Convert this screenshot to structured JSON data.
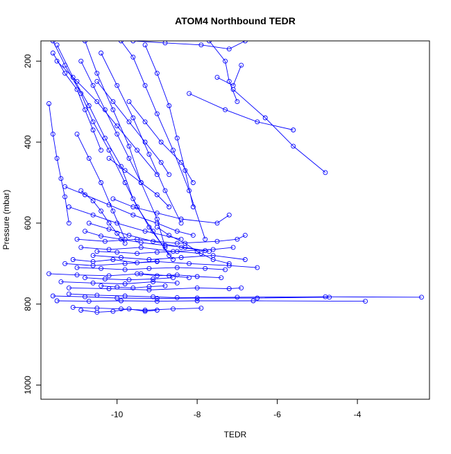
{
  "chart_data": {
    "type": "line",
    "title": "ATOM4 Northbound TEDR",
    "xlabel": "TEDR",
    "ylabel": "Pressure (mbar)",
    "xlim": [
      -11.9,
      -2.2
    ],
    "ylim": [
      1035,
      150
    ],
    "y_reversed": true,
    "grid": false,
    "legend": "none",
    "x_ticks": [
      "-10",
      "-8",
      "-6",
      "-4"
    ],
    "y_ticks": [
      "200",
      "400",
      "600",
      "800",
      "1000"
    ],
    "x_tick_values": [
      -10,
      -8,
      -6,
      -4
    ],
    "y_tick_values": [
      200,
      400,
      600,
      800,
      1000
    ],
    "colors": {
      "series": "#0000ff",
      "axis": "#000000",
      "background": "#ffffff"
    },
    "series": [
      {
        "x": [
          -11.6,
          -11.3,
          -10.9,
          -10.6,
          -10.2,
          -9.8,
          -9.5,
          -9.1,
          -8.7
        ],
        "y": [
          150,
          210,
          280,
          350,
          420,
          500,
          560,
          620,
          680
        ]
      },
      {
        "x": [
          -11.5,
          -11.1,
          -10.7,
          -10.3,
          -9.9,
          -9.6,
          -9.2,
          -8.6
        ],
        "y": [
          160,
          240,
          310,
          390,
          460,
          540,
          610,
          690
        ]
      },
      {
        "x": [
          -10.8,
          -10.5,
          -10.1,
          -9.7,
          -9.4,
          -9.0,
          -8.8
        ],
        "y": [
          150,
          230,
          320,
          410,
          500,
          590,
          660
        ]
      },
      {
        "x": [
          -9.9,
          -9.6,
          -9.3,
          -9.0,
          -8.6,
          -8.2,
          -7.8
        ],
        "y": [
          150,
          190,
          260,
          330,
          420,
          520,
          640
        ]
      },
      {
        "x": [
          -11.7,
          -11.6,
          -11.5,
          -11.4,
          -11.3,
          -11.2
        ],
        "y": [
          305,
          380,
          440,
          490,
          535,
          600
        ]
      },
      {
        "x": [
          -8.2,
          -7.3,
          -6.5,
          -5.6
        ],
        "y": [
          280,
          320,
          350,
          370
        ]
      },
      {
        "x": [
          -7.1,
          -6.3,
          -5.6,
          -4.8
        ],
        "y": [
          270,
          340,
          410,
          475
        ]
      },
      {
        "x": [
          -7.7,
          -7.3,
          -7.2,
          -7.0
        ],
        "y": [
          150,
          200,
          250,
          300
        ]
      },
      {
        "x": [
          -9.6,
          -8.8,
          -7.9,
          -7.2,
          -6.8
        ],
        "y": [
          150,
          155,
          160,
          170,
          150
        ]
      },
      {
        "x": [
          -7.5,
          -7.1,
          -6.9
        ],
        "y": [
          240,
          260,
          210
        ]
      },
      {
        "x": [
          -10.9,
          -10.6,
          -10.4,
          -10.2,
          -10.0,
          -9.8
        ],
        "y": [
          520,
          545,
          570,
          600,
          625,
          650
        ]
      },
      {
        "x": [
          -11.2,
          -10.6,
          -10.0,
          -9.3,
          -8.4
        ],
        "y": [
          560,
          580,
          600,
          620,
          640
        ]
      },
      {
        "x": [
          -11.0,
          -10.3,
          -9.5,
          -8.5,
          -7.5,
          -7.0,
          -6.8
        ],
        "y": [
          640,
          645,
          640,
          650,
          645,
          640,
          630
        ]
      },
      {
        "x": [
          -10.9,
          -10.2,
          -9.4,
          -8.6,
          -7.6,
          -7.1
        ],
        "y": [
          660,
          665,
          660,
          670,
          665,
          660
        ]
      },
      {
        "x": [
          -10.6,
          -9.9,
          -9.2,
          -8.4,
          -7.6,
          -6.8
        ],
        "y": [
          680,
          685,
          690,
          685,
          680,
          690
        ]
      },
      {
        "x": [
          -11.3,
          -10.6,
          -9.8,
          -9.0,
          -8.2,
          -7.2,
          -6.5
        ],
        "y": [
          700,
          705,
          700,
          695,
          700,
          705,
          710
        ]
      },
      {
        "x": [
          -11.7,
          -11.0,
          -10.2,
          -9.4,
          -8.7,
          -8.2
        ],
        "y": [
          725,
          728,
          730,
          725,
          730,
          735
        ]
      },
      {
        "x": [
          -11.4,
          -10.6,
          -9.8,
          -9.1,
          -8.5
        ],
        "y": [
          745,
          748,
          750,
          745,
          748
        ]
      },
      {
        "x": [
          -11.2,
          -10.2,
          -9.2,
          -8.0,
          -7.2,
          -6.9
        ],
        "y": [
          760,
          762,
          765,
          760,
          762,
          760
        ]
      },
      {
        "x": [
          -11.6,
          -10.8,
          -10.0,
          -9.0,
          -8.0,
          -6.5,
          -4.7
        ],
        "y": [
          780,
          782,
          785,
          786,
          785,
          785,
          783
        ]
      },
      {
        "x": [
          -11.5,
          -10.7,
          -9.9,
          -9.0,
          -8.0,
          -6.6,
          -3.8
        ],
        "y": [
          792,
          793,
          792,
          793,
          792,
          792,
          793
        ]
      },
      {
        "x": [
          -11.2,
          -10.5,
          -9.8,
          -9.1,
          -8.5,
          -7.0,
          -4.8,
          -2.4
        ],
        "y": [
          775,
          778,
          780,
          782,
          784,
          783,
          782,
          783
        ]
      },
      {
        "x": [
          -11.1,
          -10.5,
          -9.9,
          -9.3,
          -8.6,
          -7.9
        ],
        "y": [
          808,
          810,
          812,
          815,
          812,
          810
        ]
      },
      {
        "x": [
          -10.9,
          -10.5,
          -10.1,
          -9.7,
          -9.3,
          -9.0
        ],
        "y": [
          815,
          820,
          818,
          812,
          818,
          815
        ]
      },
      {
        "x": [
          -11.5,
          -11.0,
          -10.5,
          -10.0,
          -9.5,
          -9.0
        ],
        "y": [
          200,
          250,
          300,
          360,
          420,
          480
        ]
      },
      {
        "x": [
          -10.4,
          -10.0,
          -9.6,
          -9.2,
          -8.8,
          -8.4
        ],
        "y": [
          180,
          260,
          340,
          430,
          520,
          600
        ]
      },
      {
        "x": [
          -9.3,
          -9.0,
          -8.7,
          -8.5,
          -8.3,
          -8.1
        ],
        "y": [
          160,
          230,
          310,
          390,
          470,
          560
        ]
      },
      {
        "x": [
          -11.0,
          -10.7,
          -10.4,
          -10.1,
          -9.8
        ],
        "y": [
          380,
          440,
          500,
          570,
          640
        ]
      },
      {
        "x": [
          -10.1,
          -9.6,
          -9.0,
          -8.4,
          -7.5,
          -7.2
        ],
        "y": [
          540,
          560,
          575,
          590,
          600,
          580
        ]
      },
      {
        "x": [
          -11.3,
          -10.8,
          -10.2,
          -9.6,
          -9.0,
          -8.5,
          -8.1
        ],
        "y": [
          510,
          530,
          555,
          580,
          600,
          620,
          630
        ]
      },
      {
        "x": [
          -10.7,
          -10.2,
          -9.7,
          -9.1,
          -8.4,
          -7.7
        ],
        "y": [
          600,
          615,
          630,
          645,
          660,
          670
        ]
      },
      {
        "x": [
          -11.0,
          -10.4,
          -9.8,
          -9.2,
          -8.5,
          -7.8,
          -7.3
        ],
        "y": [
          710,
          712,
          715,
          712,
          710,
          712,
          715
        ]
      },
      {
        "x": [
          -10.8,
          -10.3,
          -9.7,
          -9.1,
          -8.6
        ],
        "y": [
          735,
          738,
          740,
          738,
          735
        ]
      },
      {
        "x": [
          -10.5,
          -10.0,
          -9.5,
          -9.0,
          -8.5,
          -7.9
        ],
        "y": [
          670,
          672,
          675,
          672,
          670,
          675
        ]
      },
      {
        "x": [
          -9.0,
          -8.7,
          -8.3,
          -8.0,
          -7.6,
          -7.2
        ],
        "y": [
          610,
          630,
          650,
          670,
          690,
          700
        ]
      },
      {
        "x": [
          -10.2,
          -9.8,
          -9.4,
          -9.0,
          -8.7
        ],
        "y": [
          440,
          470,
          500,
          530,
          560
        ]
      },
      {
        "x": [
          -9.7,
          -9.3,
          -8.9,
          -8.4,
          -8.1
        ],
        "y": [
          300,
          350,
          400,
          450,
          500
        ]
      },
      {
        "x": [
          -11.6,
          -11.3,
          -11.0,
          -10.8,
          -10.6,
          -10.4
        ],
        "y": [
          180,
          230,
          270,
          320,
          370,
          420
        ]
      },
      {
        "x": [
          -10.9,
          -10.6,
          -10.3,
          -10.0,
          -9.7,
          -9.4
        ],
        "y": [
          200,
          260,
          320,
          380,
          440,
          500
        ]
      },
      {
        "x": [
          -10.5,
          -10.1,
          -9.7,
          -9.3,
          -8.9,
          -8.7
        ],
        "y": [
          250,
          300,
          350,
          400,
          450,
          480
        ]
      },
      {
        "x": [
          -10.8,
          -10.4,
          -9.9,
          -9.4,
          -8.8,
          -8.3,
          -7.8
        ],
        "y": [
          620,
          632,
          640,
          648,
          655,
          660,
          668
        ]
      },
      {
        "x": [
          -9.5,
          -9.0,
          -8.5,
          -8.0,
          -7.4
        ],
        "y": [
          725,
          730,
          728,
          732,
          735
        ]
      },
      {
        "x": [
          -11.1,
          -10.6,
          -10.1,
          -9.5,
          -9.0
        ],
        "y": [
          690,
          695,
          690,
          698,
          694
        ]
      },
      {
        "x": [
          -10.4,
          -10.0,
          -9.6,
          -9.2,
          -8.8
        ],
        "y": [
          755,
          758,
          760,
          757,
          755
        ]
      }
    ]
  }
}
